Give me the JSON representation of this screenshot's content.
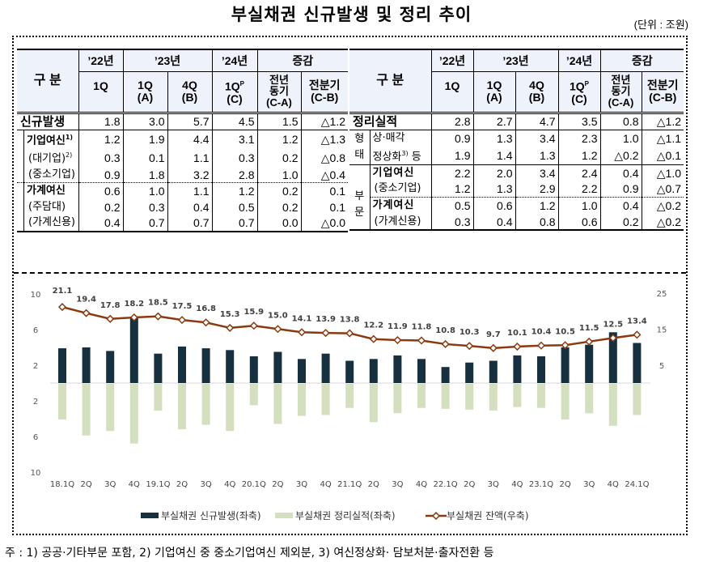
{
  "title": "부실채권 신규발생 및 정리 추이",
  "unit": "(단위 : 조원)",
  "header": {
    "category": "구  분",
    "y22": "’22년",
    "y23": "’23년",
    "y24": "’24년",
    "change": "증감",
    "c22_1q": "1Q",
    "c23_1q": "1Q",
    "c23_1q_sub": "(A)",
    "c23_4q": "4Q",
    "c23_4q_sub": "(B)",
    "c24_1q": "1Q",
    "c24_1q_sup": "P",
    "c24_1q_sub": "(C)",
    "yoy_a": "전년",
    "yoy_b": "동기",
    "yoy_sub": "(C-A)",
    "qoq": "전분기",
    "qoq_sub": "(C-B)"
  },
  "left_table": {
    "rows": [
      {
        "label": "신규발생",
        "sup": "",
        "values": [
          "1.8",
          "3.0",
          "5.7",
          "4.5",
          "1.5",
          "△1.2"
        ]
      },
      {
        "label": "기업여신",
        "sup": "1)",
        "values": [
          "1.2",
          "1.9",
          "4.4",
          "3.1",
          "1.2",
          "△1.3"
        ]
      },
      {
        "label": "(대기업)",
        "sup": "2)",
        "values": [
          "0.3",
          "0.1",
          "1.1",
          "0.3",
          "0.2",
          "△0.8"
        ]
      },
      {
        "label": "(중소기업)",
        "sup": "",
        "values": [
          "0.9",
          "1.8",
          "3.2",
          "2.8",
          "1.0",
          "△0.4"
        ]
      },
      {
        "label": "가계여신",
        "sup": "",
        "values": [
          "0.6",
          "1.0",
          "1.1",
          "1.2",
          "0.2",
          "0.1"
        ]
      },
      {
        "label": "(주담대)",
        "sup": "",
        "values": [
          "0.2",
          "0.3",
          "0.4",
          "0.5",
          "0.2",
          "0.1"
        ]
      },
      {
        "label": "(가계신용)",
        "sup": "",
        "values": [
          "0.4",
          "0.7",
          "0.7",
          "0.7",
          "0.0",
          "△0.0"
        ]
      }
    ]
  },
  "right_table": {
    "group_type_a": "형",
    "group_type_b": "태",
    "group_sector_a": "부",
    "group_sector_b": "문",
    "rows": [
      {
        "label": "정리실적",
        "sup": "",
        "values": [
          "2.8",
          "2.7",
          "4.7",
          "3.5",
          "0.8",
          "△1.2"
        ]
      },
      {
        "label": "상·매각",
        "sup": "",
        "values": [
          "0.9",
          "1.3",
          "3.4",
          "2.3",
          "1.0",
          "△1.1"
        ]
      },
      {
        "label": "정상화",
        "sup": "3)",
        "suffix": " 등",
        "values": [
          "1.9",
          "1.4",
          "1.3",
          "1.2",
          "△0.2",
          "△0.1"
        ]
      },
      {
        "label": "기업여신",
        "sup": "",
        "values": [
          "2.2",
          "2.0",
          "3.4",
          "2.4",
          "0.4",
          "△1.0"
        ]
      },
      {
        "label": "(중소기업)",
        "sup": "",
        "values": [
          "1.2",
          "1.3",
          "2.9",
          "2.2",
          "0.9",
          "△0.7"
        ]
      },
      {
        "label": "가계여신",
        "sup": "",
        "values": [
          "0.5",
          "0.6",
          "1.2",
          "1.0",
          "0.4",
          "△0.2"
        ]
      },
      {
        "label": "(가계신용)",
        "sup": "",
        "values": [
          "0.3",
          "0.4",
          "0.8",
          "0.6",
          "0.2",
          "△0.2"
        ]
      }
    ]
  },
  "chart_data": {
    "type": "bar",
    "title": "",
    "categories": [
      "18.1Q",
      "2Q",
      "3Q",
      "4Q",
      "19.1Q",
      "2Q",
      "3Q",
      "4Q",
      "20.1Q",
      "2Q",
      "3Q",
      "4Q",
      "21.1Q",
      "2Q",
      "3Q",
      "4Q",
      "22.1Q",
      "2Q",
      "3Q",
      "4Q",
      "23.1Q",
      "2Q",
      "3Q",
      "4Q",
      "24.1Q"
    ],
    "series": [
      {
        "name": "부실채권 신규발생(좌축)",
        "type": "bar",
        "axis": "left",
        "color": "#17303f",
        "values": [
          3.9,
          4.0,
          3.6,
          7.3,
          3.3,
          4.1,
          3.9,
          3.7,
          3.0,
          3.5,
          2.7,
          3.3,
          2.5,
          2.7,
          3.1,
          2.7,
          1.8,
          2.3,
          2.5,
          3.1,
          3.0,
          4.0,
          4.3,
          5.7,
          4.5
        ]
      },
      {
        "name": "부실채권 정리실적(좌축)",
        "type": "bar",
        "axis": "left",
        "direction": "down",
        "color": "#d3dfbf",
        "values": [
          4.0,
          5.8,
          5.3,
          6.7,
          3.0,
          5.1,
          4.6,
          5.3,
          2.4,
          4.5,
          3.6,
          3.5,
          2.7,
          4.3,
          3.3,
          2.7,
          2.8,
          2.9,
          3.0,
          2.6,
          2.7,
          4.0,
          3.3,
          4.7,
          3.5
        ]
      },
      {
        "name": "부실채권 잔액(우축)",
        "type": "line",
        "axis": "right",
        "color": "#8b3a0f",
        "values": [
          21.1,
          19.4,
          17.8,
          18.2,
          18.5,
          17.5,
          16.8,
          15.3,
          15.9,
          15.0,
          14.1,
          13.9,
          13.8,
          12.2,
          11.9,
          11.8,
          10.8,
          10.3,
          9.7,
          10.1,
          10.4,
          10.5,
          11.5,
          12.5,
          13.4
        ],
        "labels": [
          "21.1",
          "19.4",
          "17.8",
          "18.2",
          "18.5",
          "17.5",
          "16.8",
          "15.3",
          "15.9",
          "15.0",
          "14.1",
          "13.9",
          "13.8",
          "12.2",
          "11.9",
          "11.8",
          "10.8",
          "10.3",
          "9.7",
          "10.1",
          "10.4",
          "10.5",
          "11.5",
          "12.5",
          "13.4"
        ]
      }
    ],
    "left_axis": {
      "ticks_up": [
        "10",
        "6",
        "2"
      ],
      "ticks_down": [
        "2",
        "6",
        "10"
      ],
      "range": [
        -10,
        10
      ]
    },
    "right_axis": {
      "ticks": [
        "25",
        "15",
        "5"
      ],
      "range": [
        0,
        25
      ]
    },
    "legend": "bottom"
  },
  "footnote": "주 : 1) 공공·기타부문 포함, 2) 기업여신 중 중소기업여신 제외분, 3) 여신정상화· 담보처분·출자전환 등"
}
